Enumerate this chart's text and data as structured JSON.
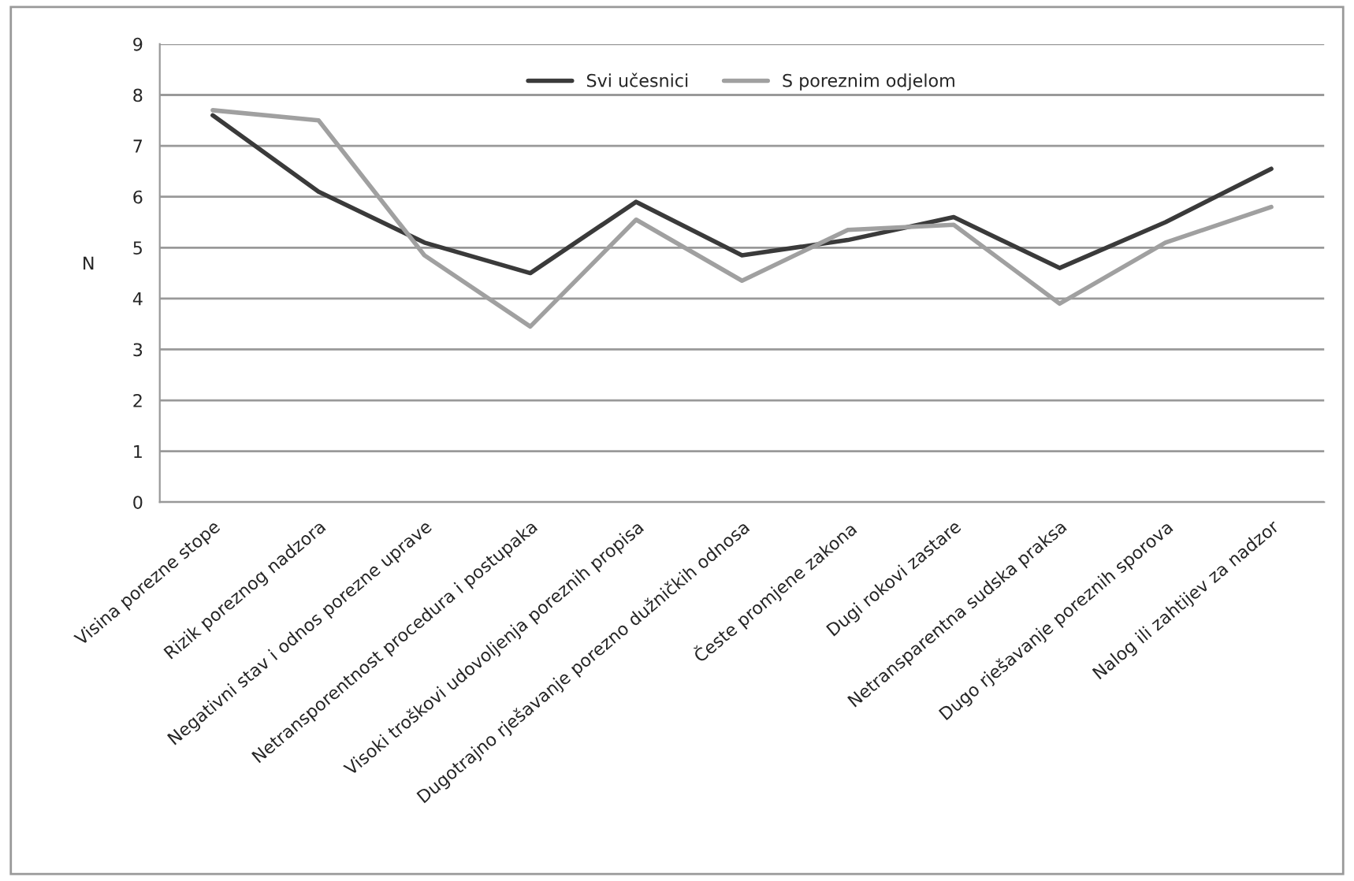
{
  "chart_data": {
    "type": "line",
    "ylabel": "N",
    "categories": [
      "Visina porezne stope",
      "Rizik poreznog nadzora",
      "Negativni stav i odnos porezne uprave",
      "Netransporentnost procedura i postupaka",
      "Visoki troškovi udovoljenja poreznih propisa",
      "Dugotrajno rješavanje porezno dužničkih odnosa",
      "Česte promjene zakona",
      "Dugi rokovi zastare",
      "Netransparentna sudska praksa",
      "Dugo rješavanje poreznih sporova",
      "Nalog ili zahtijev za nadzor"
    ],
    "series": [
      {
        "name": "Svi učesnici",
        "color": "#3a3a3a",
        "values": [
          7.6,
          6.1,
          5.1,
          4.5,
          5.9,
          4.85,
          5.15,
          5.6,
          4.6,
          5.5,
          6.55
        ]
      },
      {
        "name": "S poreznim odjelom",
        "color": "#a0a0a0",
        "values": [
          7.7,
          7.5,
          4.85,
          3.45,
          5.55,
          4.35,
          5.35,
          5.45,
          3.9,
          5.1,
          5.8
        ]
      }
    ],
    "ylim": [
      0,
      9
    ],
    "yticks": [
      0,
      1,
      2,
      3,
      4,
      5,
      6,
      7,
      8,
      9
    ],
    "grid": "y",
    "legend": "top"
  }
}
